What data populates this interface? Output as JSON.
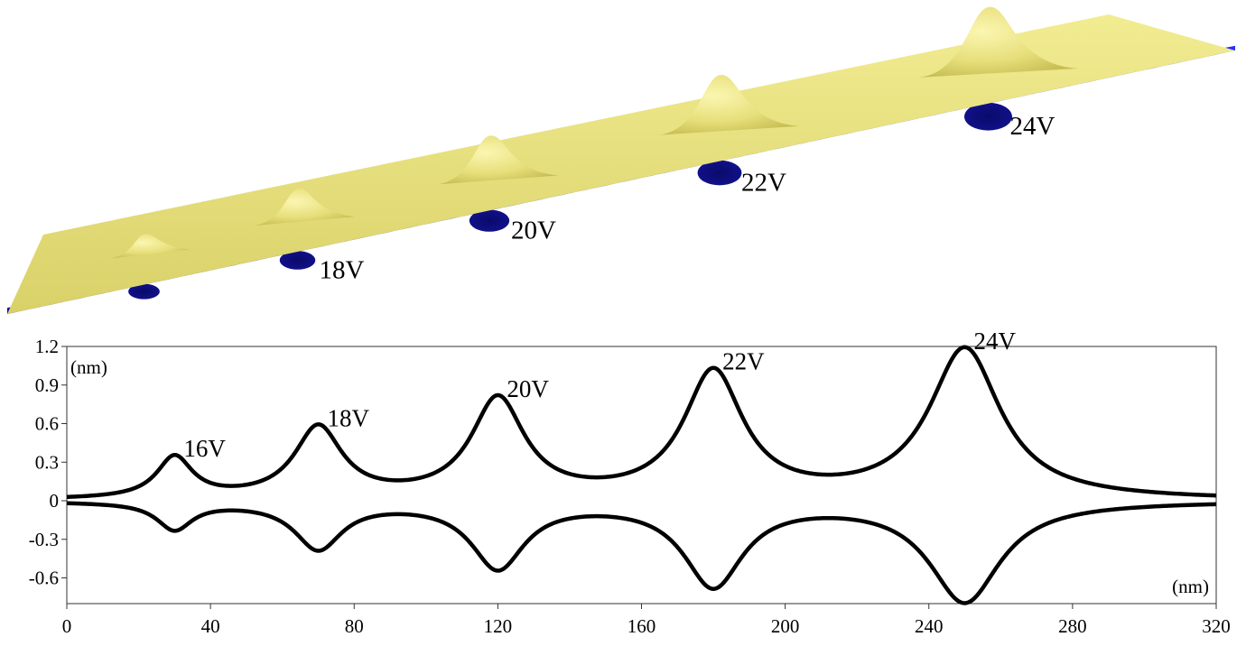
{
  "chart_data": [
    {
      "type": "surface",
      "peak_labels": [
        "16V",
        "18V",
        "20V",
        "22V",
        "24V"
      ],
      "peak_x_nm": [
        30,
        70,
        120,
        180,
        250
      ],
      "peak_heights_nm": [
        0.32,
        0.55,
        0.77,
        0.98,
        1.17
      ],
      "peak_depths_nm": [
        -0.21,
        -0.36,
        -0.51,
        -0.65,
        -0.78
      ],
      "colors": {
        "top": "#e8e27a",
        "top_shade": "#bdb34a",
        "bottom": "#1414f0",
        "bottom_shade": "#0a0a70"
      }
    },
    {
      "type": "line",
      "x_unit": "(nm)",
      "y_unit": "(nm)",
      "xlim": [
        0,
        320
      ],
      "ylim": [
        -0.8,
        1.2
      ],
      "x_ticks": [
        0,
        40,
        80,
        120,
        160,
        200,
        240,
        280,
        320
      ],
      "y_ticks": [
        1.2,
        0.9,
        0.6,
        0.3,
        0,
        -0.3,
        -0.6
      ],
      "y_tick_labels": [
        "1.2",
        "0.9",
        "0.6",
        "0.3",
        "0",
        "-0.3",
        "-0.6"
      ],
      "x_tick_labels": [
        "0",
        "40",
        "80",
        "120",
        "160",
        "200",
        "240",
        "280",
        "320"
      ],
      "grid": false,
      "peaks": [
        {
          "label": "16V",
          "x": 30,
          "top": 0.32,
          "bottom": -0.21,
          "width": 6
        },
        {
          "label": "18V",
          "x": 70,
          "top": 0.55,
          "bottom": -0.36,
          "width": 8
        },
        {
          "label": "20V",
          "x": 120,
          "top": 0.77,
          "bottom": -0.51,
          "width": 9
        },
        {
          "label": "22V",
          "x": 180,
          "top": 0.98,
          "bottom": -0.65,
          "width": 10
        },
        {
          "label": "24V",
          "x": 250,
          "top": 1.17,
          "bottom": -0.78,
          "width": 12
        }
      ],
      "series": [
        {
          "values_from": "peaks.top"
        },
        {
          "values_from": "peaks.bottom"
        }
      ],
      "line_color": "#000000"
    }
  ]
}
